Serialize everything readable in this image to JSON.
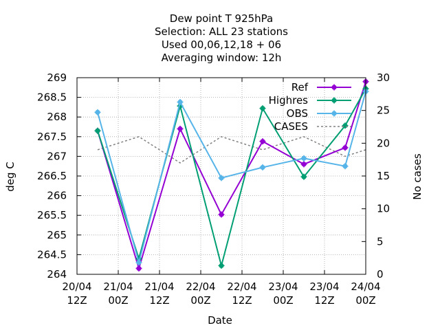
{
  "chart_data": {
    "type": "line",
    "title_lines": [
      "Dew point T 925hPa",
      "Selection: ALL      23 stations",
      "Used  00,06,12,18  + 06",
      "Averaging window: 12h"
    ],
    "xlabel": "Date",
    "ylabel": "deg C",
    "y2label": "No cases",
    "x_ticks": [
      [
        "20/04",
        "12Z"
      ],
      [
        "21/04",
        "00Z"
      ],
      [
        "21/04",
        "12Z"
      ],
      [
        "22/04",
        "00Z"
      ],
      [
        "22/04",
        "12Z"
      ],
      [
        "23/04",
        "00Z"
      ],
      [
        "23/04",
        "12Z"
      ],
      [
        "24/04",
        "00Z"
      ]
    ],
    "xlim": [
      "2020-04-20 12Z",
      "2020-04-24 00Z"
    ],
    "ylim": [
      264,
      269
    ],
    "y_ticks": [
      "264",
      "264.5",
      "265",
      "265.5",
      "266",
      "266.5",
      "267",
      "267.5",
      "268",
      "268.5",
      "269"
    ],
    "y2lim": [
      0,
      30
    ],
    "y2_ticks": [
      "0",
      "5",
      "10",
      "15",
      "20",
      "25",
      "30"
    ],
    "grid": true,
    "legend_position": "top-right",
    "x": [
      "20/04 18Z",
      "21/04 06Z",
      "21/04 18Z",
      "22/04 06Z",
      "22/04 18Z",
      "23/04 06Z",
      "23/04 18Z",
      "24/04 00Z"
    ],
    "series": [
      {
        "name": "Ref",
        "axis": "y",
        "color": "#9400d3",
        "marker": "plus",
        "values": [
          267.65,
          264.15,
          267.7,
          265.52,
          267.38,
          266.8,
          267.22,
          268.9
        ]
      },
      {
        "name": "Highres",
        "axis": "y",
        "color": "#009e73",
        "marker": "plus",
        "values": [
          267.65,
          264.4,
          268.28,
          264.22,
          268.22,
          266.48,
          267.78,
          268.72
        ]
      },
      {
        "name": "OBS",
        "axis": "y",
        "color": "#56b4e9",
        "marker": "plus",
        "values": [
          268.12,
          264.3,
          268.38,
          266.45,
          266.72,
          266.95,
          266.75,
          268.65
        ]
      },
      {
        "name": "CASES",
        "axis": "y2",
        "color": "#808080",
        "marker": "none",
        "dash": true,
        "values": [
          19,
          21,
          17,
          21,
          19,
          21,
          18,
          19
        ]
      }
    ]
  }
}
